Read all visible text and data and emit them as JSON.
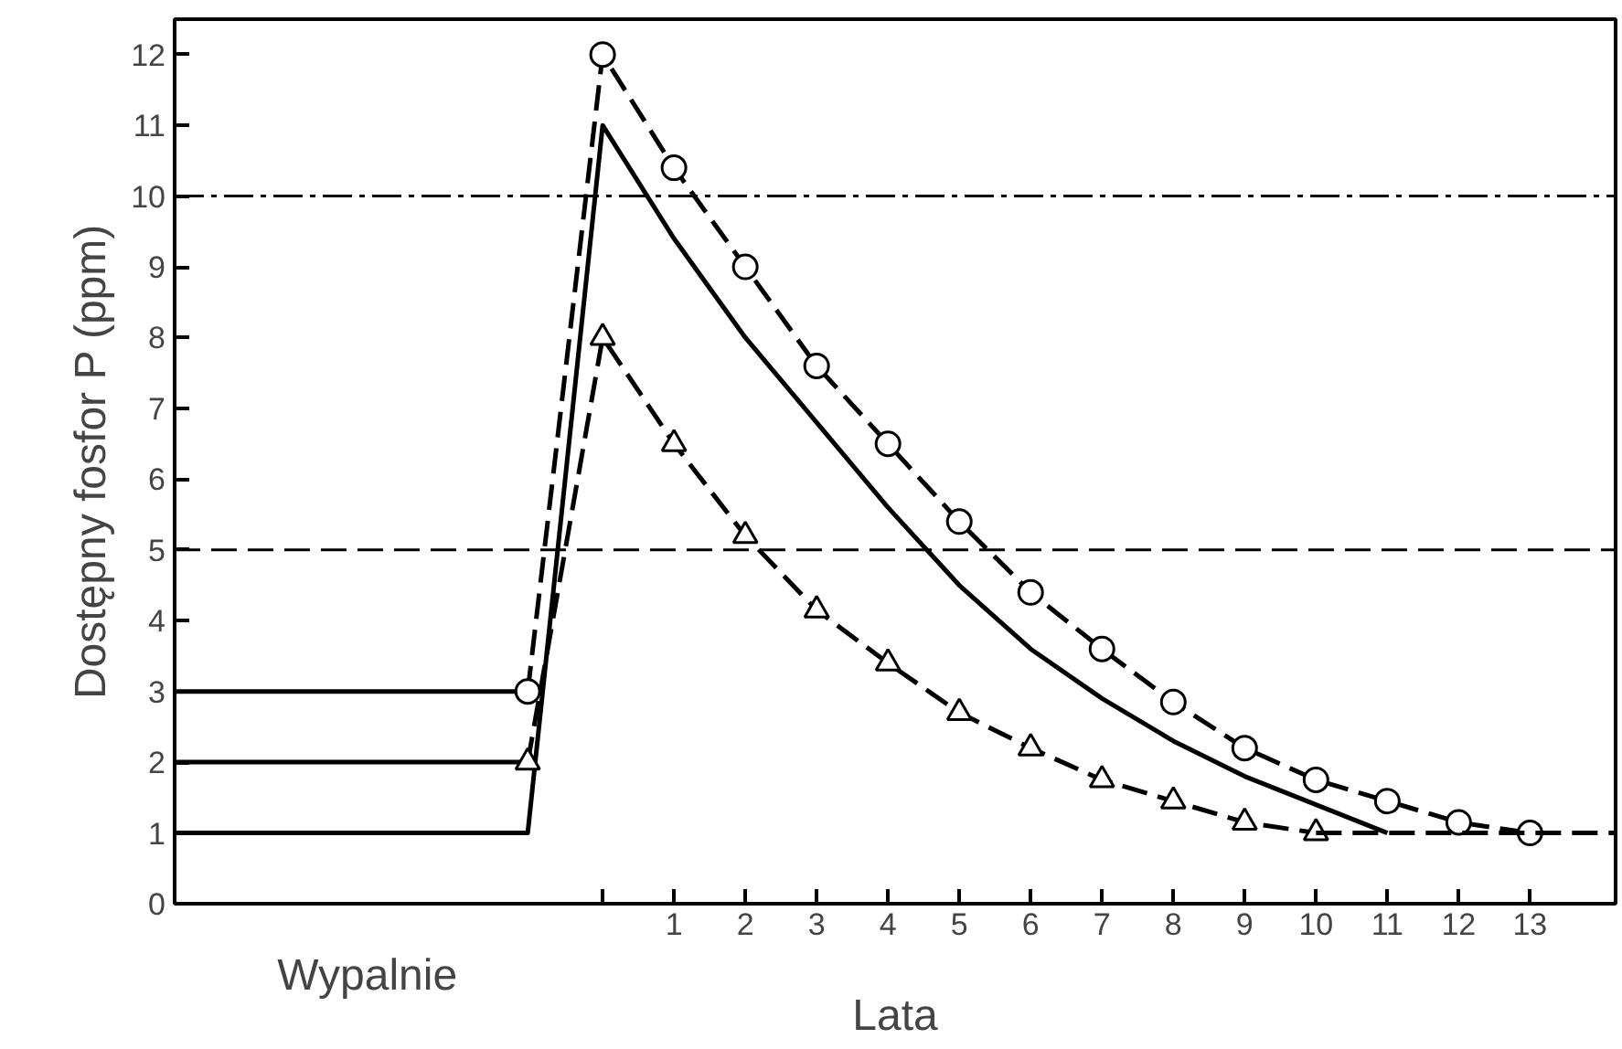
{
  "chart_data": {
    "type": "line",
    "xlabel": "Lata",
    "ylabel": "Dostępny fosfor P (ppm)",
    "annotations": [
      "Wypalnie"
    ],
    "xlim": [
      -6,
      14.2
    ],
    "ylim": [
      0,
      12.5
    ],
    "xticks": [
      {
        "value": 0,
        "label": null
      },
      1,
      2,
      3,
      4,
      5,
      6,
      7,
      8,
      9,
      10,
      11,
      12,
      13
    ],
    "yticks": [
      0,
      1,
      2,
      3,
      4,
      5,
      6,
      7,
      8,
      9,
      10,
      11,
      12
    ],
    "grid": false,
    "ref_lines": [
      {
        "axis": "y",
        "value": 10,
        "color": "#000000",
        "line_style": "dashdot"
      },
      {
        "axis": "y",
        "value": 5,
        "color": "#000000",
        "line_style": "dashed"
      }
    ],
    "series": [
      {
        "color": "#000000",
        "line_style": "solid",
        "x": [
          -6,
          -1.05
        ],
        "values": [
          3,
          3
        ]
      },
      {
        "color": "#000000",
        "line_style": "solid",
        "x": [
          -6,
          -1.05
        ],
        "values": [
          2,
          2
        ]
      },
      {
        "color": "#000000",
        "line_style": "solid",
        "x": [
          -6,
          -1.05,
          0,
          1,
          2,
          3,
          4,
          5,
          6,
          7,
          8,
          9,
          10,
          11
        ],
        "values": [
          1,
          1,
          11,
          9.4,
          8.0,
          6.8,
          5.6,
          4.5,
          3.6,
          2.9,
          2.3,
          1.8,
          1.4,
          1.0
        ]
      },
      {
        "color": "#000000",
        "line_style": "dashed",
        "marker": "circle",
        "x": [
          -1.05,
          0,
          1,
          2,
          3,
          4,
          5,
          6,
          7,
          8,
          9,
          10,
          11,
          12,
          13
        ],
        "values": [
          3,
          12,
          10.4,
          9.0,
          7.6,
          6.5,
          5.4,
          4.4,
          3.6,
          2.85,
          2.2,
          1.75,
          1.45,
          1.15,
          1.0
        ]
      },
      {
        "color": "#000000",
        "line_style": "dashed",
        "marker": "triangle",
        "x": [
          -1.05,
          0,
          1,
          2,
          3,
          4,
          5,
          6,
          7,
          8,
          9,
          10
        ],
        "values": [
          2,
          8,
          6.5,
          5.2,
          4.15,
          3.4,
          2.7,
          2.2,
          1.75,
          1.45,
          1.15,
          1.0
        ]
      },
      {
        "color": "#000000",
        "line_style": "dashed",
        "x": [
          10,
          14.2
        ],
        "values": [
          1,
          1
        ]
      }
    ]
  }
}
